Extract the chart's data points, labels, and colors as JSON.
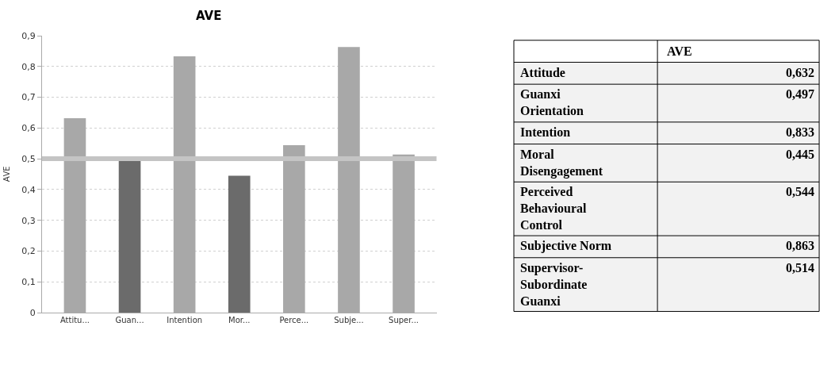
{
  "chart_data": {
    "type": "bar",
    "title": "AVE",
    "ylabel": "AVE",
    "categories": [
      "Attitu...",
      "Guan...",
      "Intention",
      "Mor...",
      "Perce...",
      "Subje...",
      "Super..."
    ],
    "values": [
      0.632,
      0.497,
      0.833,
      0.445,
      0.544,
      0.863,
      0.514
    ],
    "colors": [
      "#a8a8a8",
      "#6b6b6b",
      "#a8a8a8",
      "#6b6b6b",
      "#a8a8a8",
      "#a8a8a8",
      "#a8a8a8"
    ],
    "annotations": [
      "AVE",
      "Attitude",
      "Guanxi Orientation",
      "Intention",
      "Moral Disengagement",
      "Perceived Behavioural Control",
      "Subjective Norm",
      "Supervisor-Subordinate Guanxi",
      "0,632",
      "0,497",
      "0,833",
      "0,445",
      "0,544",
      "0,863",
      "0,514"
    ],
    "ylim": [
      0,
      0.9
    ],
    "yticks": [
      {
        "value": 0,
        "label": "0"
      },
      {
        "value": 0.1,
        "label": "0,1"
      },
      {
        "value": 0.2,
        "label": "0,2"
      },
      {
        "value": 0.3,
        "label": "0,3"
      },
      {
        "value": 0.4,
        "label": "0,4"
      },
      {
        "value": 0.5,
        "label": "0,5"
      },
      {
        "value": 0.6,
        "label": "0,6"
      },
      {
        "value": 0.7,
        "label": "0,7"
      },
      {
        "value": 0.8,
        "label": "0,8"
      },
      {
        "value": 0.9,
        "label": "0,9"
      }
    ],
    "ref_lines": [
      {
        "axis": "y",
        "value": 0.5,
        "color": "#c4c4c4"
      }
    ],
    "grid": "y"
  }
}
